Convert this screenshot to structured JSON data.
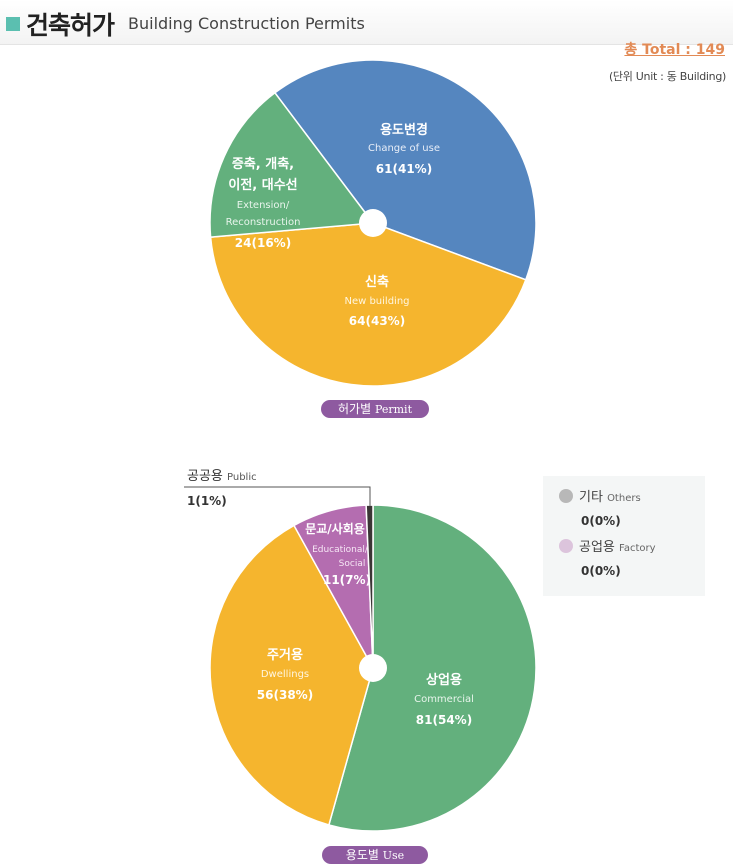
{
  "header": {
    "title_ko": "건축허가",
    "title_en": "Building Construction Permits",
    "total": "총 Total : 149",
    "unit": "(단위 Unit : 동 Building)"
  },
  "chart_data": [
    {
      "type": "pie",
      "label_ko": "허가별",
      "label_en": "Permit",
      "slices": [
        {
          "ko": "용도변경",
          "en": "Change of use",
          "value": 61,
          "pct": "61(41%)",
          "color": "#5586bf"
        },
        {
          "ko": "신축",
          "en": "New building",
          "value": 64,
          "pct": "64(43%)",
          "color": "#f5b52e"
        },
        {
          "ko_lines": [
            "증축, 개축,",
            "이전, 대수선"
          ],
          "en_lines": [
            "Extension/",
            "Reconstruction"
          ],
          "value": 24,
          "pct": "24(16%)",
          "color": "#63b07d"
        }
      ]
    },
    {
      "type": "pie",
      "label_ko": "용도별",
      "label_en": "Use",
      "slices": [
        {
          "ko": "상업용",
          "en": "Commercial",
          "value": 81,
          "pct": "81(54%)",
          "color": "#63b07d"
        },
        {
          "ko": "주거용",
          "en": "Dwellings",
          "value": 56,
          "pct": "56(38%)",
          "color": "#f5b52e"
        },
        {
          "ko": "문교/사회용",
          "en_lines": [
            "Educational/",
            "Social"
          ],
          "value": 11,
          "pct": "11(7%)",
          "color": "#b46db0"
        },
        {
          "ko": "공공용",
          "en": "Public",
          "value": 1,
          "pct": "1(1%)",
          "color": "#3a3535"
        }
      ],
      "legend": [
        {
          "ko": "기타",
          "en": "Others",
          "value": "0(0%)",
          "color": "#b8b8b8"
        },
        {
          "ko": "공업용",
          "en": "Factory",
          "value": "0(0%)",
          "color": "#dcc4dc"
        }
      ]
    }
  ]
}
